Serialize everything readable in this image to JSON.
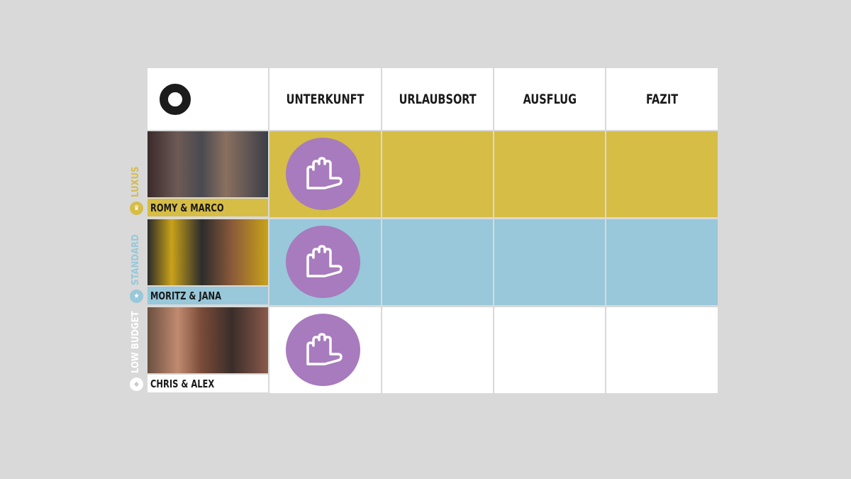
{
  "header": {
    "logo": "circle-logo",
    "columns": [
      "UNTERKUNFT",
      "URLAUBSORT",
      "AUSFLUG",
      "FAZIT"
    ]
  },
  "rows": [
    {
      "category": "LUXUS",
      "name": "ROMY & MARCO",
      "color": "#d6bd45",
      "badge_icon": "crown-icon"
    },
    {
      "category": "STANDARD",
      "name": "MORITZ & JANA",
      "color": "#98c8da",
      "badge_icon": "star-icon"
    },
    {
      "category": "LOW BUDGET",
      "name": "CHRIS & ALEX",
      "color": "#ffffff",
      "badge_icon": "diamond-icon"
    }
  ],
  "vote_icon": "hand-stop-icon",
  "vote_color": "#a77bbd"
}
